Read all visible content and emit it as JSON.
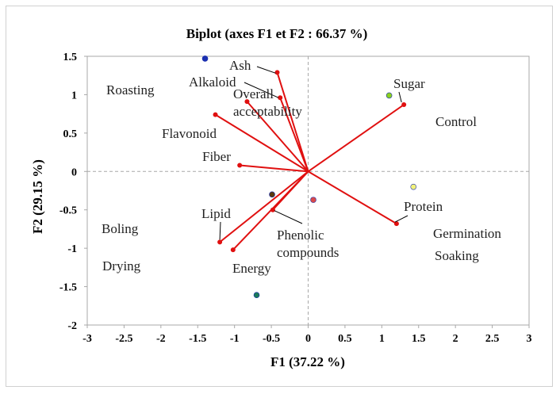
{
  "chart_data": {
    "type": "scatter",
    "title": "Biplot (axes F1 et F2 : 66.37 %)",
    "xlabel": "F1 (37.22 %)",
    "ylabel": "F2 (29.15 %)",
    "xlim": [
      -3,
      3
    ],
    "ylim": [
      -2,
      1.5
    ],
    "xticks": [
      "-3",
      "-2.5",
      "-2",
      "-1.5",
      "-1",
      "-0.5",
      "0",
      "0.5",
      "1",
      "1.5",
      "2",
      "2.5",
      "3"
    ],
    "yticks": [
      "-2",
      "-1.5",
      "-1",
      "-0.5",
      "0",
      "0.5",
      "1",
      "1.5"
    ],
    "grid": false,
    "variables": [
      {
        "name": "Ash",
        "x": -0.42,
        "y": 1.29
      },
      {
        "name": "Alkaloid",
        "x": -0.38,
        "y": 0.96
      },
      {
        "name": "Overall acceptability",
        "x": -0.83,
        "y": 0.91
      },
      {
        "name": "Flavonoid",
        "x": -1.26,
        "y": 0.74
      },
      {
        "name": "Fiber",
        "x": -0.93,
        "y": 0.08
      },
      {
        "name": "Sugar",
        "x": 1.3,
        "y": 0.87
      },
      {
        "name": "Protein",
        "x": 1.2,
        "y": -0.68
      },
      {
        "name": "Phenolic compounds",
        "x": -0.48,
        "y": -0.5
      },
      {
        "name": "Lipid",
        "x": -1.2,
        "y": -0.92
      },
      {
        "name": "Energy",
        "x": -1.02,
        "y": -1.02
      }
    ],
    "observations": [
      {
        "name": "Roasting",
        "x": -1.4,
        "y": 1.47,
        "color": "#1a2fb0"
      },
      {
        "name": "Control",
        "x": 1.1,
        "y": 0.99,
        "color": "#8bd11f"
      },
      {
        "name": "Germination",
        "x": 1.43,
        "y": -0.2,
        "color": "#f2f27a"
      },
      {
        "name": "Soaking",
        "x": 0.07,
        "y": -0.37,
        "color": "#d94a4a"
      },
      {
        "name": "Boling",
        "x": -0.49,
        "y": -0.3,
        "color": "#5a3a10"
      },
      {
        "name": "Drying",
        "x": -0.7,
        "y": -1.61,
        "color": "#1c7a5a"
      }
    ],
    "observation_labels": [
      "Roasting",
      "Control",
      "Boling",
      "Drying",
      "Germination",
      "Soaking"
    ],
    "vector_color": "#e01010"
  }
}
